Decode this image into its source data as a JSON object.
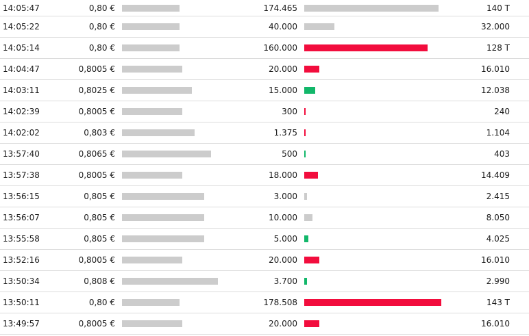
{
  "colors": {
    "price_bar": "#cccccc",
    "volume_up": "#12b76a",
    "volume_down": "#f20d3d",
    "volume_neutral": "#cccccc"
  },
  "trades": [
    {
      "time": "14:05:47",
      "price": "0,80 €",
      "price_level": 0.84,
      "volume": "174.465",
      "volume_level": 0.196,
      "direction": "neutral",
      "turnover": "140 T"
    },
    {
      "time": "14:05:22",
      "price": "0,80 €",
      "price_level": 0.84,
      "volume": "40.000",
      "volume_level": 0.044,
      "direction": "neutral",
      "turnover": "32.000"
    },
    {
      "time": "14:05:14",
      "price": "0,80 €",
      "price_level": 0.84,
      "volume": "160.000",
      "volume_level": 0.18,
      "direction": "down",
      "turnover": "128 T"
    },
    {
      "time": "14:04:47",
      "price": "0,8005 €",
      "price_level": 0.88,
      "volume": "20.000",
      "volume_level": 0.022,
      "direction": "down",
      "turnover": "16.010"
    },
    {
      "time": "14:03:11",
      "price": "0,8025 €",
      "price_level": 1.02,
      "volume": "15.000",
      "volume_level": 0.016,
      "direction": "up",
      "turnover": "12.038"
    },
    {
      "time": "14:02:39",
      "price": "0,8005 €",
      "price_level": 0.88,
      "volume": "300",
      "volume_level": 0.002,
      "direction": "down",
      "turnover": "240"
    },
    {
      "time": "14:02:02",
      "price": "0,803 €",
      "price_level": 1.06,
      "volume": "1.375",
      "volume_level": 0.002,
      "direction": "down",
      "turnover": "1.104"
    },
    {
      "time": "13:57:40",
      "price": "0,8065 €",
      "price_level": 1.3,
      "volume": "500",
      "volume_level": 0.002,
      "direction": "up",
      "turnover": "403"
    },
    {
      "time": "13:57:38",
      "price": "0,8005 €",
      "price_level": 0.88,
      "volume": "18.000",
      "volume_level": 0.02,
      "direction": "down",
      "turnover": "14.409"
    },
    {
      "time": "13:56:15",
      "price": "0,805 €",
      "price_level": 1.2,
      "volume": "3.000",
      "volume_level": 0.004,
      "direction": "neutral",
      "turnover": "2.415"
    },
    {
      "time": "13:56:07",
      "price": "0,805 €",
      "price_level": 1.2,
      "volume": "10.000",
      "volume_level": 0.012,
      "direction": "neutral",
      "turnover": "8.050"
    },
    {
      "time": "13:55:58",
      "price": "0,805 €",
      "price_level": 1.2,
      "volume": "5.000",
      "volume_level": 0.006,
      "direction": "up",
      "turnover": "4.025"
    },
    {
      "time": "13:52:16",
      "price": "0,8005 €",
      "price_level": 0.88,
      "volume": "20.000",
      "volume_level": 0.022,
      "direction": "down",
      "turnover": "16.010"
    },
    {
      "time": "13:50:34",
      "price": "0,808 €",
      "price_level": 1.4,
      "volume": "3.700",
      "volume_level": 0.004,
      "direction": "up",
      "turnover": "2.990"
    },
    {
      "time": "13:50:11",
      "price": "0,80 €",
      "price_level": 0.84,
      "volume": "178.508",
      "volume_level": 0.2,
      "direction": "down",
      "turnover": "143 T"
    },
    {
      "time": "13:49:57",
      "price": "0,8005 €",
      "price_level": 0.88,
      "volume": "20.000",
      "volume_level": 0.022,
      "direction": "down",
      "turnover": "16.010"
    }
  ]
}
